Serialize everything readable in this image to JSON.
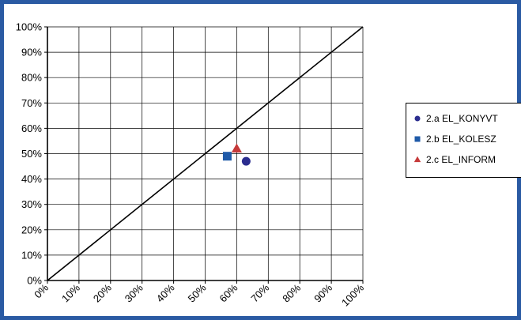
{
  "chart_data": {
    "type": "scatter",
    "title": "",
    "xlabel": "",
    "ylabel": "",
    "xlim": [
      0,
      100
    ],
    "ylim": [
      0,
      100
    ],
    "x_ticks": [
      "0%",
      "10%",
      "20%",
      "30%",
      "40%",
      "50%",
      "60%",
      "70%",
      "80%",
      "90%",
      "100%"
    ],
    "y_ticks": [
      "0%",
      "10%",
      "20%",
      "30%",
      "40%",
      "50%",
      "60%",
      "70%",
      "80%",
      "90%",
      "100%"
    ],
    "grid": true,
    "reference_line": {
      "from": [
        0,
        0
      ],
      "to": [
        100,
        100
      ]
    },
    "legend_position": "right",
    "series": [
      {
        "name": "2.a EL_KONYVT",
        "marker": "circle",
        "color": "#2b2d8f",
        "points": [
          {
            "x": 63,
            "y": 47
          }
        ]
      },
      {
        "name": "2.b EL_KOLESZ",
        "marker": "square",
        "color": "#1f5aa8",
        "points": [
          {
            "x": 57,
            "y": 49
          }
        ]
      },
      {
        "name": "2.c EL_INFORM",
        "marker": "triangle",
        "color": "#c63a3a",
        "points": [
          {
            "x": 60,
            "y": 52
          }
        ]
      }
    ]
  }
}
